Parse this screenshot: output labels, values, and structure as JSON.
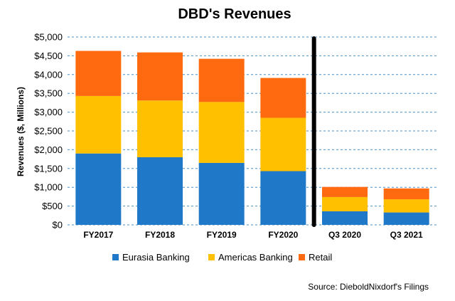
{
  "chart_data": {
    "type": "bar",
    "stacked": true,
    "title": "DBD's Revenues",
    "ylabel": "Revenues ($, Millions)",
    "xlabel": "",
    "ylim": [
      0,
      5000
    ],
    "yticks": [
      0,
      500,
      1000,
      1500,
      2000,
      2500,
      3000,
      3500,
      4000,
      4500,
      5000
    ],
    "ytick_labels": [
      "$0",
      "$500",
      "$1,000",
      "$1,500",
      "$2,000",
      "$2,500",
      "$3,000",
      "$3,500",
      "$4,000",
      "$4,500",
      "$5,000"
    ],
    "grid": true,
    "legend_position": "bottom",
    "categories": [
      "FY2017",
      "FY2018",
      "FY2019",
      "FY2020",
      "Q3 2020",
      "Q3 2021"
    ],
    "series": [
      {
        "name": "Eurasia Banking",
        "color": "#1f78c8",
        "values": [
          1900,
          1800,
          1650,
          1430,
          360,
          330
        ]
      },
      {
        "name": "Americas Banking",
        "color": "#ffc000",
        "values": [
          1530,
          1510,
          1620,
          1420,
          380,
          350
        ]
      },
      {
        "name": "Retail",
        "color": "#ff6a10",
        "values": [
          1200,
          1280,
          1150,
          1060,
          270,
          290
        ]
      }
    ],
    "divider_after_category_index": 3,
    "annotation": "Source: DieboldNixdorf's Filings"
  }
}
